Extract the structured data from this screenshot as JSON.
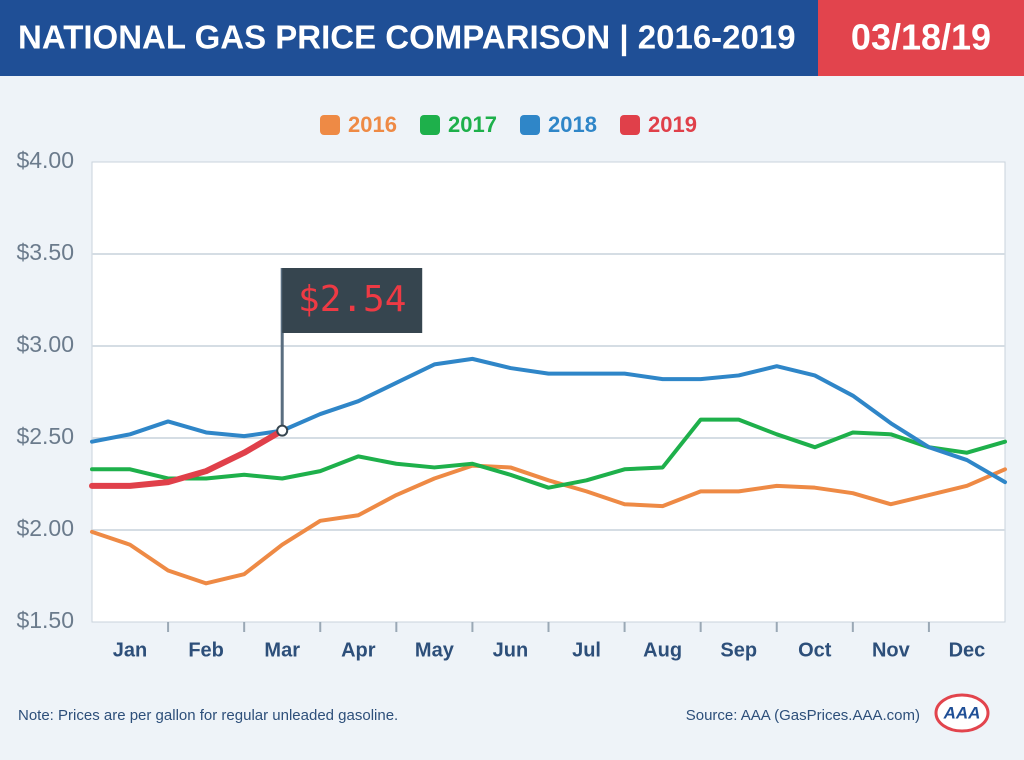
{
  "chart_data": {
    "type": "line",
    "title": "NATIONAL GAS PRICE COMPARISON | 2016-2019",
    "date": "03/18/19",
    "note": "Note: Prices are per gallon for regular unleaded gasoline.",
    "source": "Source: AAA (GasPrices.AAA.com)",
    "logo": "AAA",
    "x": [
      0,
      0.5,
      1,
      1.5,
      2,
      2.5,
      3,
      3.5,
      4,
      4.5,
      5,
      5.5,
      6,
      6.5,
      7,
      7.5,
      8,
      8.5,
      9,
      9.5,
      10,
      10.5,
      11,
      11.5,
      12
    ],
    "xlim": [
      0,
      12
    ],
    "xticks": [
      {
        "value": 0.5,
        "label": "Jan"
      },
      {
        "value": 1.5,
        "label": "Feb"
      },
      {
        "value": 2.5,
        "label": "Mar"
      },
      {
        "value": 3.5,
        "label": "Apr"
      },
      {
        "value": 4.5,
        "label": "May"
      },
      {
        "value": 5.5,
        "label": "Jun"
      },
      {
        "value": 6.5,
        "label": "Jul"
      },
      {
        "value": 7.5,
        "label": "Aug"
      },
      {
        "value": 8.5,
        "label": "Sep"
      },
      {
        "value": 9.5,
        "label": "Oct"
      },
      {
        "value": 10.5,
        "label": "Nov"
      },
      {
        "value": 11.5,
        "label": "Dec"
      }
    ],
    "ylim": [
      1.5,
      4
    ],
    "yticks": [
      {
        "value": 1.5,
        "label": "$1.50"
      },
      {
        "value": 2,
        "label": "$2.00"
      },
      {
        "value": 2.5,
        "label": "$2.50"
      },
      {
        "value": 3,
        "label": "$3.00"
      },
      {
        "value": 3.5,
        "label": "$3.50"
      },
      {
        "value": 4,
        "label": "$4.00"
      }
    ],
    "grid": true,
    "legend": "top",
    "series": [
      {
        "name": "2016",
        "color": "#ee8a45",
        "values": [
          1.99,
          1.92,
          1.78,
          1.71,
          1.76,
          1.92,
          2.05,
          2.08,
          2.19,
          2.28,
          2.35,
          2.34,
          2.27,
          2.21,
          2.14,
          2.13,
          2.21,
          2.21,
          2.24,
          2.23,
          2.2,
          2.14,
          2.19,
          2.24,
          2.33
        ]
      },
      {
        "name": "2017",
        "color": "#1eb04b",
        "values": [
          2.33,
          2.33,
          2.28,
          2.28,
          2.3,
          2.28,
          2.32,
          2.4,
          2.36,
          2.34,
          2.36,
          2.3,
          2.23,
          2.27,
          2.33,
          2.34,
          2.6,
          2.6,
          2.52,
          2.45,
          2.53,
          2.52,
          2.45,
          2.42,
          2.48
        ]
      },
      {
        "name": "2018",
        "color": "#2f86c8",
        "values": [
          2.48,
          2.52,
          2.59,
          2.53,
          2.51,
          2.54,
          2.63,
          2.7,
          2.8,
          2.9,
          2.93,
          2.88,
          2.85,
          2.85,
          2.85,
          2.82,
          2.82,
          2.84,
          2.89,
          2.84,
          2.73,
          2.58,
          2.45,
          2.38,
          2.26
        ]
      },
      {
        "name": "2019",
        "color": "#e0404a",
        "values": [
          2.24,
          2.24,
          2.26,
          2.32,
          2.42,
          2.54,
          null,
          null,
          null,
          null,
          null,
          null,
          null,
          null,
          null,
          null,
          null,
          null,
          null,
          null,
          null,
          null,
          null,
          null,
          null
        ],
        "value_labels": [
          null,
          null,
          null,
          null,
          null,
          "$2.54",
          null,
          null,
          null,
          null,
          null,
          null,
          null,
          null,
          null,
          null,
          null,
          null,
          null,
          null,
          null,
          null,
          null,
          null,
          null
        ]
      }
    ]
  }
}
